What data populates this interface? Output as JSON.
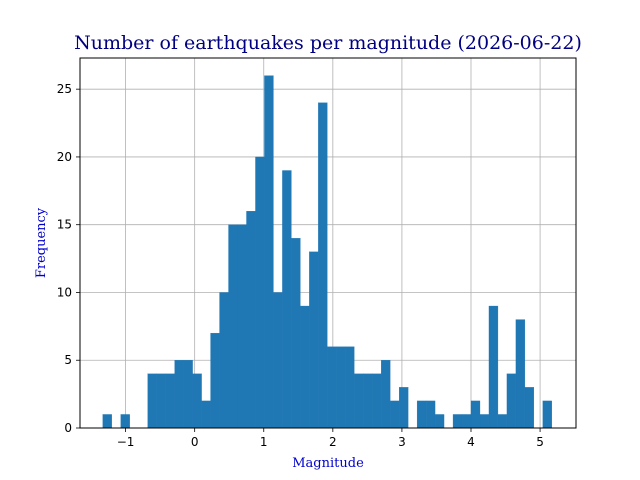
{
  "chart_data": {
    "type": "bar",
    "title": "Number of earthquakes per magnitude (2026-06-22)",
    "xlabel": "Magnitude",
    "ylabel": "Frequency",
    "title_color": "#000080",
    "label_color": "#0000cd",
    "bar_color": "#1f77b4",
    "grid": true,
    "xlim": [
      -1.66,
      5.52
    ],
    "ylim": [
      0,
      27.3
    ],
    "xticks": [
      -1,
      0,
      1,
      2,
      3,
      4,
      5
    ],
    "xtick_labels": [
      "−1",
      "0",
      "1",
      "2",
      "3",
      "4",
      "5"
    ],
    "yticks": [
      0,
      5,
      10,
      15,
      20,
      25
    ],
    "ytick_labels": [
      "0",
      "5",
      "10",
      "15",
      "20",
      "25"
    ],
    "bin_width": 0.13,
    "bin_start": [
      -1.33,
      -1.07,
      -0.68,
      -0.55,
      -0.42,
      -0.29,
      -0.16,
      -0.03,
      0.1,
      0.23,
      0.36,
      0.49,
      0.62,
      0.75,
      0.88,
      1.01,
      1.14,
      1.27,
      1.4,
      1.53,
      1.66,
      1.79,
      1.92,
      2.05,
      2.18,
      2.31,
      2.44,
      2.57,
      2.7,
      2.83,
      2.96,
      3.22,
      3.35,
      3.48,
      3.74,
      3.87,
      4.0,
      4.13,
      4.26,
      4.39,
      4.52,
      4.65,
      4.78,
      5.04
    ],
    "values": [
      1,
      1,
      4,
      4,
      4,
      5,
      5,
      4,
      2,
      7,
      10,
      15,
      15,
      16,
      20,
      26,
      10,
      19,
      14,
      9,
      13,
      24,
      6,
      6,
      6,
      4,
      4,
      4,
      5,
      2,
      3,
      2,
      2,
      1,
      1,
      1,
      2,
      1,
      9,
      1,
      4,
      8,
      3,
      2
    ]
  }
}
